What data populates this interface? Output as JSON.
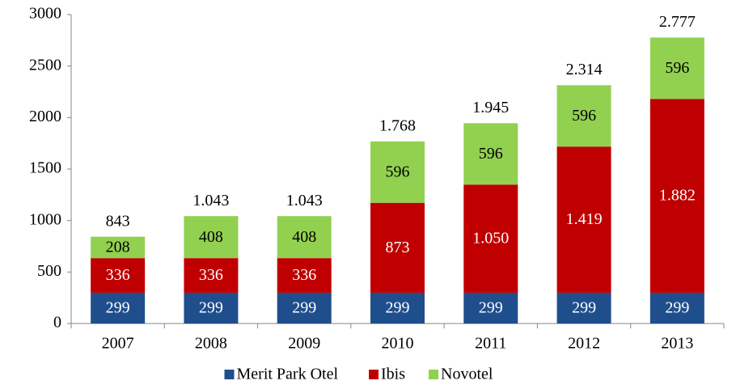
{
  "chart_data": {
    "type": "stacked_bar",
    "categories": [
      "2007",
      "2008",
      "2009",
      "2010",
      "2011",
      "2012",
      "2013"
    ],
    "series": [
      {
        "name": "Merit Park Otel",
        "color": "#1f4e8c",
        "values": [
          299,
          299,
          299,
          299,
          299,
          299,
          299
        ]
      },
      {
        "name": "Ibis",
        "color": "#c00000",
        "values": [
          336,
          336,
          336,
          873,
          1050,
          1419,
          1882
        ],
        "value_labels": [
          "336",
          "336",
          "336",
          "873",
          "1.050",
          "1.419",
          "1.882"
        ]
      },
      {
        "name": "Novotel",
        "color": "#92d050",
        "values": [
          208,
          408,
          408,
          596,
          596,
          596,
          596
        ]
      }
    ],
    "totals": {
      "values": [
        843,
        1043,
        1043,
        1768,
        1945,
        2314,
        2777
      ],
      "value_labels": [
        "843",
        "1.043",
        "1.043",
        "1.768",
        "1.945",
        "2.314",
        "2.777"
      ]
    },
    "ylim": [
      0,
      3000
    ],
    "yticks": [
      0,
      500,
      1000,
      1500,
      2000,
      2500,
      3000
    ],
    "legend": "bottom"
  }
}
